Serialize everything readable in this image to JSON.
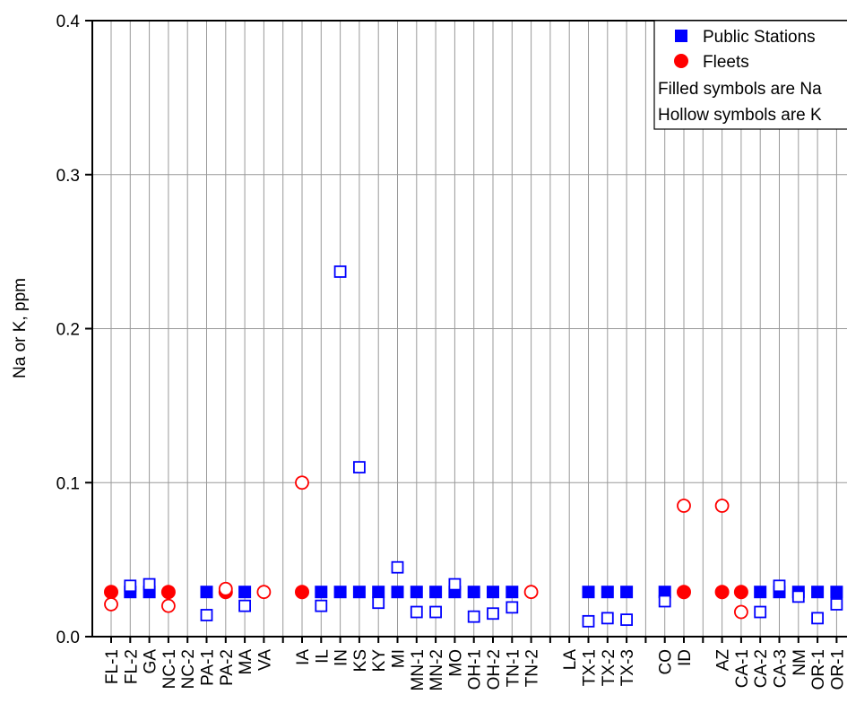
{
  "chart_data": {
    "type": "scatter",
    "ylabel": "Na or K, ppm",
    "categories": [
      "FL-1",
      "FL-2",
      "GA",
      "NC-1",
      "NC-2",
      "PA-1",
      "PA-2",
      "MA",
      "VA",
      null,
      "IA",
      "IL",
      "IN",
      "KS",
      "KY",
      "MI",
      "MN-1",
      "MN-2",
      "MO",
      "OH-1",
      "OH-2",
      "TN-1",
      "TN-2",
      null,
      "LA",
      "TX-1",
      "TX-2",
      "TX-3",
      null,
      "CO",
      "ID",
      null,
      "AZ",
      "CA-1",
      "CA-2",
      "CA-3",
      "NM",
      "OR-1",
      "OR-1"
    ],
    "series": [
      {
        "name": "Public Stations",
        "color": "#0000ff",
        "marker": "square",
        "values": [
          null,
          0.029,
          0.029,
          null,
          null,
          0.029,
          null,
          0.029,
          null,
          null,
          null,
          0.029,
          0.029,
          0.029,
          0.029,
          0.029,
          0.029,
          0.029,
          0.029,
          0.029,
          0.029,
          0.029,
          null,
          null,
          null,
          0.029,
          0.029,
          0.029,
          null,
          0.029,
          null,
          null,
          null,
          null,
          0.029,
          0.029,
          0.029,
          0.029,
          0.029
        ],
        "k_values": [
          null,
          0.033,
          0.034,
          null,
          null,
          0.014,
          null,
          0.02,
          null,
          null,
          null,
          0.02,
          0.237,
          0.11,
          0.022,
          0.045,
          0.016,
          0.016,
          0.034,
          0.013,
          0.015,
          0.019,
          null,
          null,
          null,
          0.01,
          0.012,
          0.011,
          null,
          0.023,
          null,
          null,
          null,
          null,
          0.016,
          0.033,
          0.026,
          0.012,
          0.021
        ]
      },
      {
        "name": "Fleets",
        "color": "#ff0000",
        "marker": "circle",
        "values": [
          0.029,
          null,
          null,
          0.029,
          null,
          null,
          0.029,
          null,
          null,
          null,
          0.029,
          null,
          null,
          null,
          null,
          null,
          null,
          null,
          null,
          null,
          null,
          null,
          null,
          null,
          null,
          null,
          null,
          null,
          null,
          null,
          0.029,
          null,
          0.029,
          0.029,
          null,
          null,
          null,
          null,
          null
        ],
        "k_values": [
          0.021,
          null,
          null,
          0.02,
          null,
          null,
          0.031,
          null,
          0.029,
          null,
          0.1,
          null,
          null,
          null,
          null,
          null,
          null,
          null,
          null,
          null,
          null,
          null,
          0.029,
          null,
          null,
          null,
          null,
          null,
          null,
          null,
          0.085,
          null,
          0.085,
          0.016,
          null,
          null,
          null,
          null,
          null
        ]
      }
    ],
    "legend_notes": [
      "Filled symbols are Na",
      "Hollow symbols are K"
    ],
    "legend": "upper right",
    "ylim": [
      0,
      0.4
    ],
    "yticks": [
      {
        "value": 0,
        "label": "0.0"
      },
      0.1,
      0.2,
      0.3,
      0.4
    ],
    "grid": true
  }
}
